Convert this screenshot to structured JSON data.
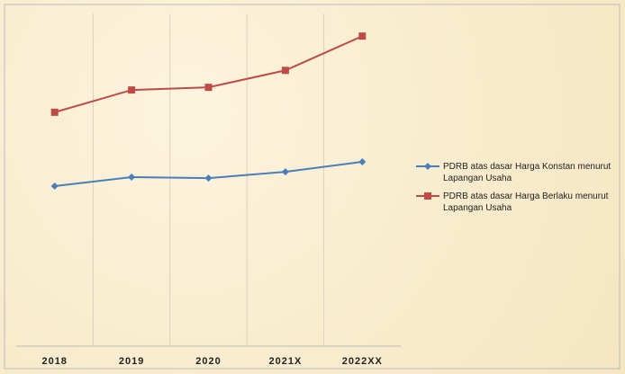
{
  "chart_data": {
    "type": "line",
    "categories": [
      "2018",
      "2019",
      "2020",
      "2021X",
      "2022XX"
    ],
    "series": [
      {
        "name": "PDRB  atas dasar Harga Konstan menurut Lapangan Usaha",
        "color": "#4a7ebb",
        "marker": "diamond",
        "values": [
          48.1,
          50.8,
          50.5,
          52.4,
          55.4
        ]
      },
      {
        "name": "PDRB  atas dasar Harga Berlaku menurut Lapangan Usaha",
        "color": "#be4b48",
        "marker": "square",
        "values": [
          70.3,
          77.0,
          77.8,
          82.9,
          93.2
        ]
      }
    ],
    "ylim": [
      0,
      100
    ],
    "grid": true,
    "legend": "right"
  }
}
